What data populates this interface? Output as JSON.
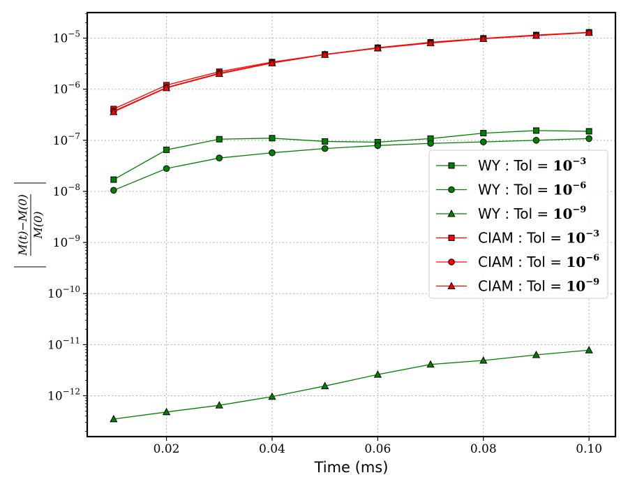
{
  "chart_data": {
    "type": "line",
    "xlabel": "Time (ms)",
    "ylabel_fraction": {
      "numerator": "M(t)−M(0)",
      "denominator": "M(0)"
    },
    "yscale": "log",
    "xlim": [
      0.005,
      0.105
    ],
    "ylim_exp": [
      -12.8,
      -4.5
    ],
    "x_ticks": [
      {
        "value": 0.02,
        "label": "0.02"
      },
      {
        "value": 0.04,
        "label": "0.04"
      },
      {
        "value": 0.06,
        "label": "0.06"
      },
      {
        "value": 0.08,
        "label": "0.08"
      },
      {
        "value": 0.1,
        "label": "0.10"
      }
    ],
    "y_ticks": [
      {
        "exp": -5,
        "label": "10",
        "sup": "−5"
      },
      {
        "exp": -6,
        "label": "10",
        "sup": "−6"
      },
      {
        "exp": -7,
        "label": "10",
        "sup": "−7"
      },
      {
        "exp": -8,
        "label": "10",
        "sup": "−8"
      },
      {
        "exp": -9,
        "label": "10",
        "sup": "−9"
      },
      {
        "exp": -10,
        "label": "10",
        "sup": "−10"
      },
      {
        "exp": -11,
        "label": "10",
        "sup": "−11"
      },
      {
        "exp": -12,
        "label": "10",
        "sup": "−12"
      }
    ],
    "grid": true,
    "legend_position": "center-right",
    "x": [
      0.01,
      0.02,
      0.03,
      0.04,
      0.05,
      0.06,
      0.07,
      0.08,
      0.09,
      0.1
    ],
    "series": [
      {
        "name": "WY : Tol = ",
        "tol_base": "10",
        "tol_sup": "−3",
        "color": "#008000",
        "marker": "square",
        "values": [
          1.7e-08,
          6.5e-08,
          1.05e-07,
          1.1e-07,
          9.5e-08,
          9.2e-08,
          1.08e-07,
          1.38e-07,
          1.55e-07,
          1.5e-07
        ]
      },
      {
        "name": "WY : Tol = ",
        "tol_base": "10",
        "tol_sup": "−6",
        "color": "#008000",
        "marker": "circle",
        "values": [
          1.05e-08,
          2.8e-08,
          4.5e-08,
          5.7e-08,
          6.9e-08,
          7.9e-08,
          8.7e-08,
          9.3e-08,
          1e-07,
          1.08e-07
        ]
      },
      {
        "name": "WY : Tol = ",
        "tol_base": "10",
        "tol_sup": "−9",
        "color": "#008000",
        "marker": "triangle",
        "values": [
          3.5e-13,
          4.8e-13,
          6.5e-13,
          9.6e-13,
          1.55e-12,
          2.6e-12,
          4.1e-12,
          4.9e-12,
          6.3e-12,
          7.8e-12
        ]
      },
      {
        "name": "CIAM : Tol = ",
        "tol_base": "10",
        "tol_sup": "−3",
        "color": "#ff0000",
        "marker": "square",
        "values": [
          4.1e-07,
          1.2e-06,
          2.2e-06,
          3.4e-06,
          4.8e-06,
          6.5e-06,
          8.3e-06,
          9.9e-06,
          1.15e-05,
          1.3e-05
        ]
      },
      {
        "name": "CIAM : Tol = ",
        "tol_base": "10",
        "tol_sup": "−6",
        "color": "#ff0000",
        "marker": "circle",
        "values": [
          3.7e-07,
          1.08e-06,
          2.05e-06,
          3.3e-06,
          4.8e-06,
          6.4e-06,
          8.1e-06,
          9.8e-06,
          1.13e-05,
          1.29e-05
        ]
      },
      {
        "name": "CIAM : Tol = ",
        "tol_base": "10",
        "tol_sup": "−9",
        "color": "#ff0000",
        "marker": "triangle",
        "values": [
          3.6e-07,
          1.06e-06,
          2e-06,
          3.25e-06,
          4.75e-06,
          6.35e-06,
          8e-06,
          9.7e-06,
          1.12e-05,
          1.28e-05
        ]
      }
    ]
  }
}
